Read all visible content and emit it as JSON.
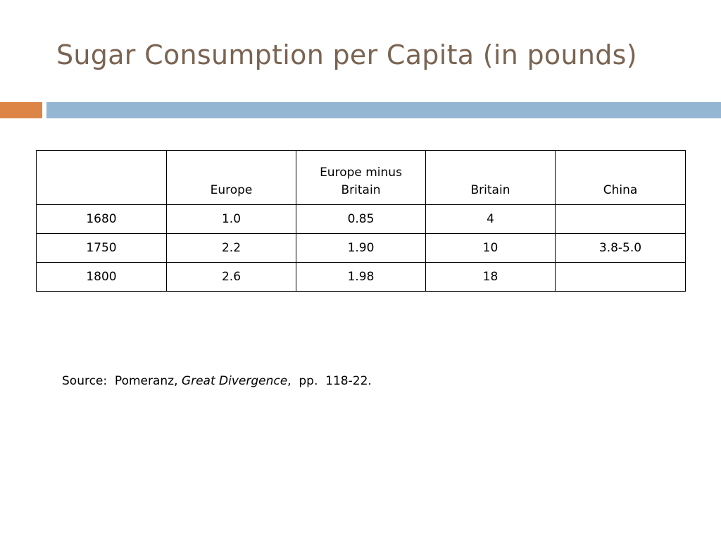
{
  "slide": {
    "title": "Sugar Consumption per Capita (in pounds)"
  },
  "table": {
    "headers": {
      "blank": "",
      "europe": "Europe",
      "europe_minus_britain_line1": "Europe minus",
      "europe_minus_britain_line2": "Britain",
      "britain": "Britain",
      "china": "China"
    },
    "rows": [
      {
        "year": "1680",
        "europe": "1.0",
        "europe_minus_britain": "0.85",
        "britain": "4",
        "china": ""
      },
      {
        "year": "1750",
        "europe": "2.2",
        "europe_minus_britain": "1.90",
        "britain": "10",
        "china": "3.8-5.0"
      },
      {
        "year": "1800",
        "europe": "2.6",
        "europe_minus_britain": "1.98",
        "britain": "18",
        "china": ""
      }
    ]
  },
  "source": {
    "prefix": "Source:  Pomeranz, ",
    "work": "Great Divergence",
    "suffix": ",  pp.  118-22."
  },
  "colors": {
    "title": "#7a6452",
    "accent_orange": "#dd8547",
    "accent_blue": "#94b6d2"
  }
}
